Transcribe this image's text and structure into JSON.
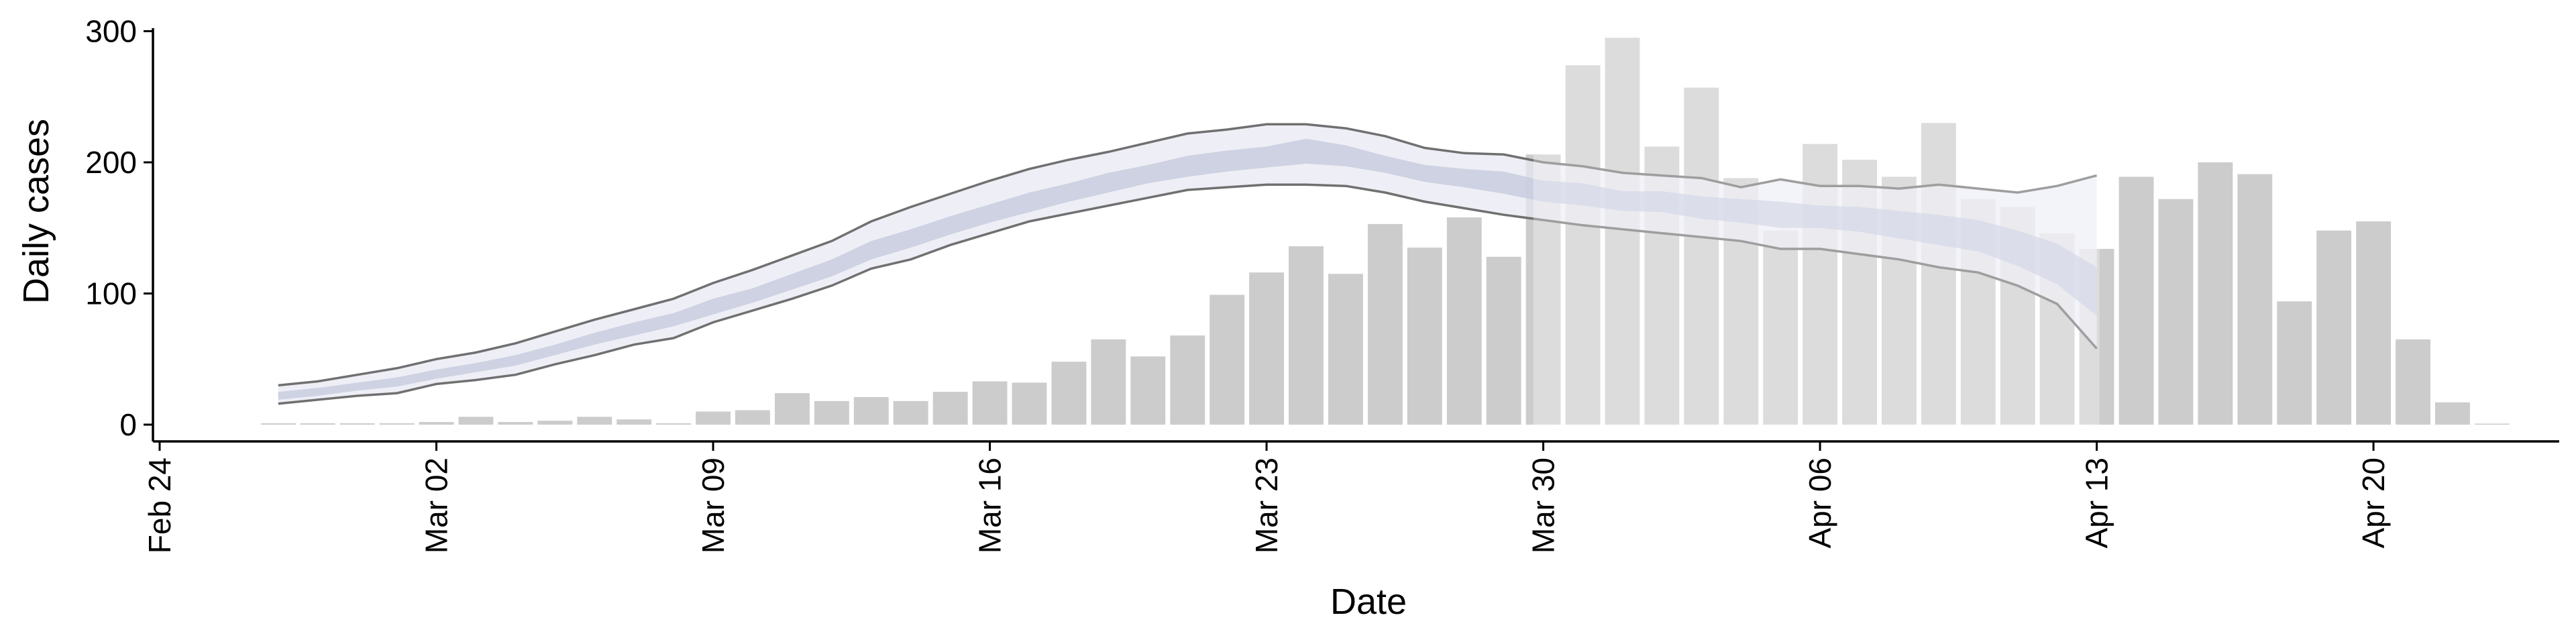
{
  "chart_data": {
    "type": "bar",
    "xlabel": "Date",
    "ylabel": "Daily cases",
    "ylim": [
      -10,
      305
    ],
    "y_ticks": [
      0,
      100,
      200,
      300
    ],
    "x_ticks": [
      {
        "date": "2020-02-24",
        "label": "Feb 24"
      },
      {
        "date": "2020-03-02",
        "label": "Mar 02"
      },
      {
        "date": "2020-03-09",
        "label": "Mar 09"
      },
      {
        "date": "2020-03-16",
        "label": "Mar 16"
      },
      {
        "date": "2020-03-23",
        "label": "Mar 23"
      },
      {
        "date": "2020-03-30",
        "label": "Mar 30"
      },
      {
        "date": "2020-04-06",
        "label": "Apr 06"
      },
      {
        "date": "2020-04-13",
        "label": "Apr 13"
      },
      {
        "date": "2020-04-20",
        "label": "Apr 20"
      }
    ],
    "xlim": [
      "2020-02-24",
      "2020-04-24"
    ],
    "grid": false,
    "legend": "none",
    "colors": {
      "bars": "#cccccc",
      "band_outer": "#e8e9f2",
      "band_inner": "#c5cadd",
      "band_outline": "#707070",
      "axis": "#000000"
    },
    "bars": {
      "dates": [
        "2020-02-27",
        "2020-02-28",
        "2020-02-29",
        "2020-03-01",
        "2020-03-02",
        "2020-03-03",
        "2020-03-04",
        "2020-03-05",
        "2020-03-06",
        "2020-03-07",
        "2020-03-08",
        "2020-03-09",
        "2020-03-10",
        "2020-03-11",
        "2020-03-12",
        "2020-03-13",
        "2020-03-14",
        "2020-03-15",
        "2020-03-16",
        "2020-03-17",
        "2020-03-18",
        "2020-03-19",
        "2020-03-20",
        "2020-03-21",
        "2020-03-22",
        "2020-03-23",
        "2020-03-24",
        "2020-03-25",
        "2020-03-26",
        "2020-03-27",
        "2020-03-28",
        "2020-03-29",
        "2020-03-30",
        "2020-03-31",
        "2020-04-01",
        "2020-04-02",
        "2020-04-03",
        "2020-04-04",
        "2020-04-05",
        "2020-04-06",
        "2020-04-07",
        "2020-04-08",
        "2020-04-09",
        "2020-04-10",
        "2020-04-11",
        "2020-04-12",
        "2020-04-13",
        "2020-04-14",
        "2020-04-15",
        "2020-04-16",
        "2020-04-17",
        "2020-04-18",
        "2020-04-19",
        "2020-04-20",
        "2020-04-21",
        "2020-04-22",
        "2020-04-23"
      ],
      "values": [
        1,
        1,
        1,
        1,
        2,
        6,
        2,
        3,
        6,
        4,
        1,
        10,
        11,
        24,
        18,
        21,
        18,
        25,
        33,
        32,
        48,
        65,
        52,
        68,
        99,
        116,
        136,
        115,
        153,
        135,
        158,
        128,
        206,
        274,
        295,
        212,
        257,
        188,
        148,
        214,
        202,
        189,
        230,
        172,
        166,
        146,
        134,
        189,
        172,
        200,
        191,
        94,
        148,
        155,
        65,
        17,
        0
      ]
    },
    "fit": {
      "dates": [
        "2020-02-27",
        "2020-02-28",
        "2020-02-29",
        "2020-03-01",
        "2020-03-02",
        "2020-03-03",
        "2020-03-04",
        "2020-03-05",
        "2020-03-06",
        "2020-03-07",
        "2020-03-08",
        "2020-03-09",
        "2020-03-10",
        "2020-03-11",
        "2020-03-12",
        "2020-03-13",
        "2020-03-14",
        "2020-03-15",
        "2020-03-16",
        "2020-03-17",
        "2020-03-18",
        "2020-03-19",
        "2020-03-20",
        "2020-03-21",
        "2020-03-22",
        "2020-03-23",
        "2020-03-24",
        "2020-03-25",
        "2020-03-26",
        "2020-03-27",
        "2020-03-28",
        "2020-03-29",
        "2020-03-30",
        "2020-03-31",
        "2020-04-01",
        "2020-04-02",
        "2020-04-03",
        "2020-04-04",
        "2020-04-05",
        "2020-04-06",
        "2020-04-07",
        "2020-04-08",
        "2020-04-09",
        "2020-04-10",
        "2020-04-11",
        "2020-04-12",
        "2020-04-13"
      ],
      "outer_upper": [
        30,
        33,
        38,
        43,
        50,
        55,
        62,
        71,
        80,
        88,
        96,
        108,
        118,
        129,
        140,
        155,
        166,
        176,
        186,
        195,
        202,
        208,
        215,
        222,
        225,
        229,
        229,
        226,
        220,
        211,
        207,
        206,
        200,
        197,
        192,
        190,
        188,
        181,
        187,
        182,
        182,
        180,
        183,
        180,
        177,
        182,
        190
      ],
      "outer_lower": [
        16,
        19,
        22,
        24,
        31,
        34,
        38,
        46,
        53,
        61,
        66,
        78,
        87,
        96,
        106,
        119,
        126,
        137,
        146,
        155,
        161,
        167,
        173,
        179,
        181,
        183,
        183,
        182,
        177,
        170,
        165,
        160,
        156,
        152,
        149,
        146,
        143,
        140,
        134,
        134,
        130,
        126,
        120,
        116,
        106,
        92,
        58
      ],
      "inner_upper": [
        25,
        28,
        32,
        36,
        42,
        47,
        53,
        61,
        70,
        78,
        85,
        96,
        104,
        115,
        126,
        140,
        149,
        159,
        168,
        177,
        184,
        192,
        198,
        205,
        209,
        212,
        218,
        213,
        205,
        198,
        195,
        193,
        186,
        184,
        178,
        178,
        174,
        172,
        170,
        167,
        166,
        163,
        160,
        156,
        148,
        138,
        120
      ],
      "inner_lower": [
        19,
        22,
        26,
        29,
        35,
        40,
        45,
        53,
        61,
        68,
        75,
        84,
        93,
        103,
        113,
        126,
        135,
        145,
        154,
        162,
        170,
        177,
        184,
        189,
        193,
        196,
        199,
        197,
        192,
        185,
        181,
        176,
        170,
        167,
        163,
        162,
        157,
        154,
        150,
        150,
        147,
        142,
        137,
        132,
        121,
        107,
        83
      ],
      "faded_from": "2020-03-30"
    }
  }
}
